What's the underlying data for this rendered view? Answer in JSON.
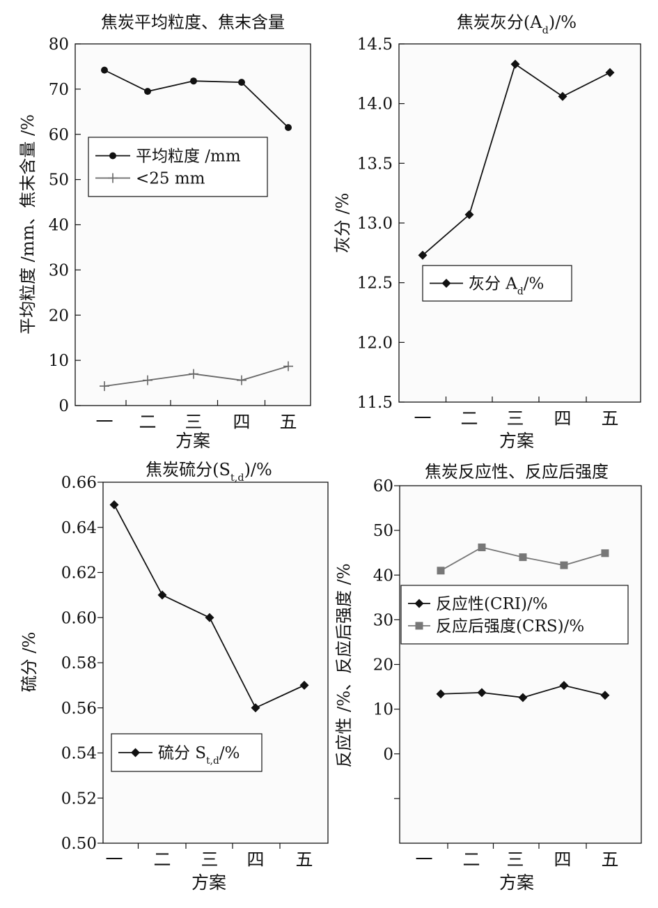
{
  "chart_data": [
    {
      "type": "line",
      "title": "焦炭平均粒度、焦末含量",
      "xlabel": "方案",
      "ylabel": "平均粒度 /mm、焦末含量 /%",
      "categories": [
        "一",
        "二",
        "三",
        "四",
        "五"
      ],
      "ylim": [
        0,
        80
      ],
      "yticks": [
        "0",
        "10",
        "20",
        "30",
        "40",
        "50",
        "60",
        "70",
        "80"
      ],
      "legend_position": "upper-left",
      "grid": false,
      "series": [
        {
          "name": "平均粒度 /mm",
          "marker": "circle",
          "color": "#111111",
          "x": [
            0,
            1,
            2,
            3,
            4
          ],
          "values": [
            74.2,
            69.5,
            71.8,
            71.5,
            61.5
          ]
        },
        {
          "name": "<25 mm",
          "marker": "plus",
          "color": "#666666",
          "x": [
            0,
            1,
            2,
            3,
            4
          ],
          "values": [
            4.3,
            5.6,
            7.0,
            5.6,
            8.7
          ]
        }
      ]
    },
    {
      "type": "line",
      "title": "焦炭灰分(A_d)/%",
      "xlabel": "方案",
      "ylabel": "灰分 /%",
      "categories": [
        "一",
        "二",
        "三",
        "四",
        "五"
      ],
      "ylim": [
        11.5,
        14.5
      ],
      "yticks": [
        "11.5",
        "12.0",
        "12.5",
        "13.0",
        "13.5",
        "14.0",
        "14.5"
      ],
      "legend_position": "lower-left",
      "grid": false,
      "series": [
        {
          "name": "灰分 A_d/%",
          "marker": "diamond",
          "color": "#111111",
          "x": [
            0,
            1,
            2,
            3,
            4
          ],
          "values": [
            12.73,
            13.07,
            14.33,
            14.06,
            14.26
          ]
        }
      ]
    },
    {
      "type": "line",
      "title": "焦炭硫分(S_t,d)/%",
      "xlabel": "方案",
      "ylabel": "硫分 /%",
      "categories": [
        "一",
        "二",
        "三",
        "四",
        "五"
      ],
      "ylim": [
        0.5,
        0.66
      ],
      "yticks": [
        "0.50",
        "0.52",
        "0.54",
        "0.56",
        "0.58",
        "0.60",
        "0.62",
        "0.64",
        "0.66"
      ],
      "legend_position": "lower-left",
      "grid": false,
      "series": [
        {
          "name": "硫分 S_t,d/%",
          "marker": "diamond",
          "color": "#111111",
          "x": [
            0,
            1,
            2,
            3,
            4
          ],
          "values": [
            0.65,
            0.61,
            0.6,
            0.56,
            0.57
          ]
        }
      ]
    },
    {
      "type": "line",
      "title": "焦炭反应性、反应后强度",
      "xlabel": "方案",
      "ylabel": "反应性 /%、反应后强度 /%",
      "categories": [
        "一",
        "二",
        "三",
        "四",
        "五"
      ],
      "ylim": [
        -20,
        60
      ],
      "yticks": [
        "0",
        "10",
        "20",
        "30",
        "40",
        "50",
        "60"
      ],
      "legend_position": "middle-left",
      "grid": false,
      "series": [
        {
          "name": "反应性(CRI)/%",
          "marker": "diamond",
          "color": "#111111",
          "x": [
            0.85,
            1.7,
            2.55,
            3.4,
            4.25
          ],
          "values": [
            13.4,
            13.7,
            12.6,
            15.3,
            13.1
          ]
        },
        {
          "name": "反应后强度(CRS)/%",
          "marker": "square",
          "color": "#777777",
          "x": [
            0.85,
            1.7,
            2.55,
            3.4,
            4.25
          ],
          "values": [
            41.0,
            46.2,
            44.0,
            42.2,
            44.9
          ]
        }
      ]
    }
  ]
}
